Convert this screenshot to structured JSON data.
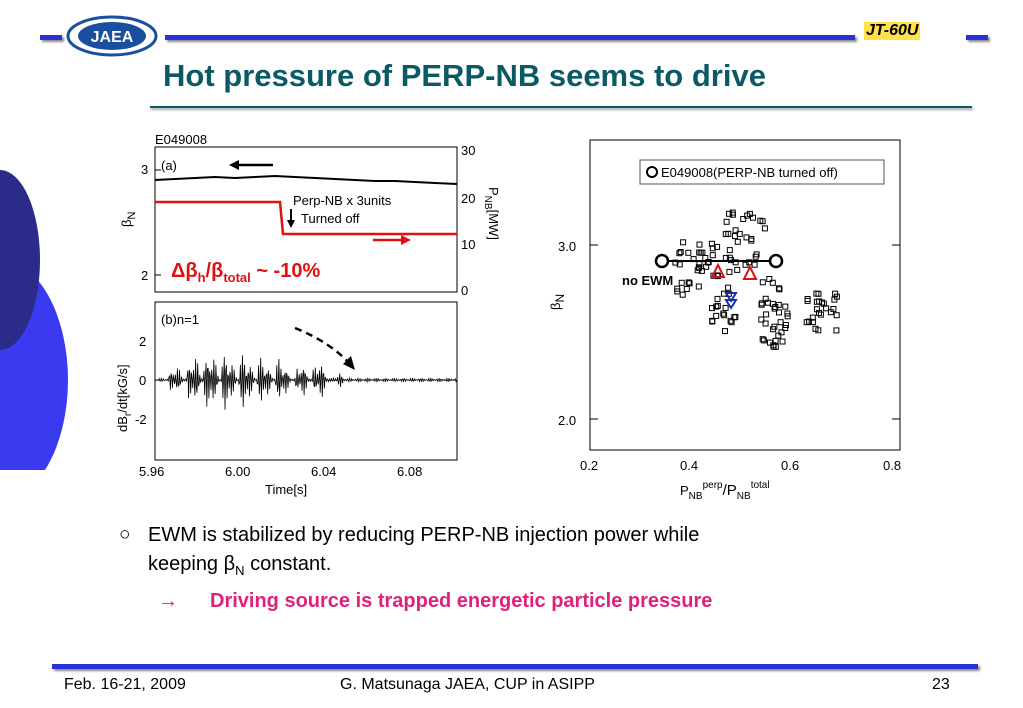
{
  "header": {
    "logo_text": "JAEA",
    "device_label": "JT-60U"
  },
  "title": "Hot pressure of PERP-NB seems to drive",
  "left_figure": {
    "shot_id": "E049008",
    "panel_a": {
      "label": "(a)",
      "ylabel_left": "β",
      "ylabel_left_sub": "N",
      "ylabel_right": "P",
      "ylabel_right_sub": "NB",
      "ylabel_right_unit": "[MW]",
      "left_ticks": [
        "3",
        "2"
      ],
      "right_ticks": [
        "30",
        "20",
        "10",
        "0"
      ],
      "annotation_line1": "Perp-NB x 3units",
      "annotation_line2": "Turned off",
      "delta_text_pre": "Δβ",
      "delta_sub1": "h",
      "delta_mid": "/β",
      "delta_sub2": "total",
      "delta_post": " ~ -10%"
    },
    "panel_b": {
      "label": "(b)n=1",
      "ylabel": "dB",
      "ylabel_sub": "r",
      "ylabel_rest": "/dt[kG/s]",
      "y_ticks": [
        "2",
        "0",
        "-2"
      ],
      "x_ticks": [
        "5.96",
        "6.00",
        "6.04",
        "6.08"
      ],
      "xlabel": "Time[s]"
    }
  },
  "right_figure": {
    "legend": "E049008(PERP-NB turned off)",
    "annotation": "no EWM",
    "ylabel": "β",
    "ylabel_sub": "N",
    "y_ticks": [
      "3.0",
      "2.0"
    ],
    "x_ticks": [
      "0.2",
      "0.4",
      "0.6",
      "0.8"
    ],
    "xlabel": "P",
    "xlabel_sub": "NB",
    "xlabel_sup": "perp",
    "xlabel_mid": "/P",
    "xlabel_sub2": "NB",
    "xlabel_sup2": "total"
  },
  "bullets": {
    "symbol": "○",
    "line1": "EWM is stabilized by reducing PERP-NB injection power while",
    "line2_pre": "keeping ",
    "line2_beta": "β",
    "line2_sub": "N",
    "line2_post": " constant.",
    "arrow": "→",
    "conclusion": "Driving source is trapped energetic particle pressure"
  },
  "footer": {
    "date": "Feb. 16-21, 2009",
    "author": "G. Matsunaga JAEA, CUP in ASIPP",
    "page": "23"
  },
  "colors": {
    "accent_blue": "#2b2fd6",
    "title_teal": "#0a5a66",
    "highlight_pink": "#e0207a",
    "red": "#e01010"
  }
}
